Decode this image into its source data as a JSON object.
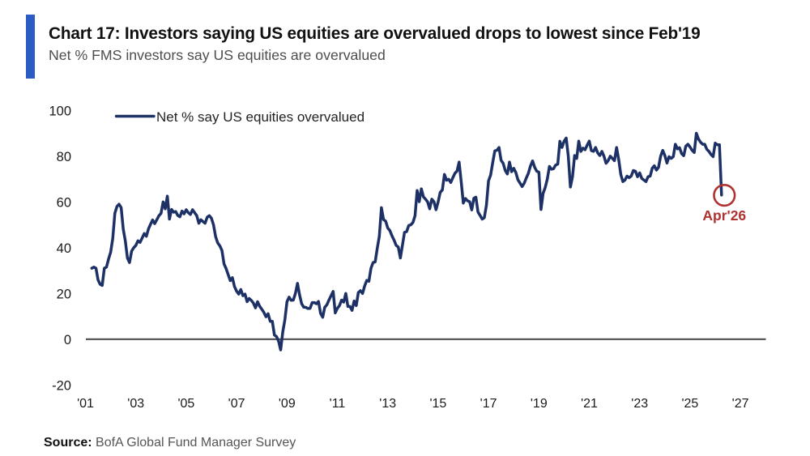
{
  "header": {
    "title": "Chart 17: Investors saying US equities are overvalued drops to lowest since Feb'19",
    "subtitle": "Net % FMS investors say US equities are overvalued"
  },
  "legend": {
    "label": "Net % say US equities overvalued"
  },
  "annotation": {
    "label": "Apr'26"
  },
  "source": {
    "prefix": "Source:",
    "text": "BofA Global Fund Manager Survey"
  },
  "colors": {
    "accent_bar": "#2b5cc4",
    "line": "#1d3166",
    "annotation_red": "#b03232",
    "zero_line": "#4d4d4d",
    "title_text": "#111111",
    "subtitle_text": "#4d4d4d",
    "axis_text": "#1a1a1a",
    "legend_text": "#222222",
    "source_text": "#555555"
  },
  "chart_data": {
    "type": "line",
    "title": "Chart 17: Investors saying US equities are overvalued drops to lowest since Feb'19",
    "subtitle": "Net % FMS investors say US equities are overvalued",
    "ylabel": "Net % say US equities overvalued",
    "xlabel": "",
    "grid": false,
    "legend_position": "top-left",
    "ylim": [
      -20,
      100
    ],
    "y_ticks": [
      100,
      80,
      60,
      40,
      20,
      0,
      -20
    ],
    "x_tick_labels": [
      "'01",
      "'03",
      "'05",
      "'07",
      "'09",
      "'11",
      "'13",
      "'15",
      "'17",
      "'19",
      "'21",
      "'23",
      "'25",
      "'27"
    ],
    "x_tick_years": [
      2001,
      2003,
      2005,
      2007,
      2009,
      2011,
      2013,
      2015,
      2017,
      2019,
      2021,
      2023,
      2025,
      2027
    ],
    "series": [
      {
        "name": "Net % say US equities overvalued",
        "start_month": "Apr'01",
        "end_month": "Apr'26",
        "months": [
          "Apr'01",
          "May'01",
          "Jun'01",
          "Jul'01",
          "Aug'01",
          "Sep'01",
          "Oct'01",
          "Nov'01",
          "Dec'01",
          "Jan'02",
          "Feb'02",
          "Mar'02",
          "Apr'02",
          "May'02",
          "Jun'02",
          "Jul'02",
          "Aug'02",
          "Sep'02",
          "Oct'02",
          "Nov'02",
          "Dec'02",
          "Jan'03",
          "Feb'03",
          "Mar'03",
          "Apr'03",
          "May'03",
          "Jun'03",
          "Jul'03",
          "Aug'03",
          "Sep'03",
          "Oct'03",
          "Nov'03",
          "Dec'03",
          "Jan'04",
          "Feb'04",
          "Mar'04",
          "Apr'04",
          "May'04",
          "Jun'04",
          "Jul'04",
          "Aug'04",
          "Sep'04",
          "Oct'04",
          "Nov'04",
          "Dec'04",
          "Jan'05",
          "Feb'05",
          "Mar'05",
          "Apr'05",
          "May'05",
          "Jun'05",
          "Jul'05",
          "Aug'05",
          "Sep'05",
          "Oct'05",
          "Nov'05",
          "Dec'05",
          "Jan'06",
          "Feb'06",
          "Mar'06",
          "Apr'06",
          "May'06",
          "Jun'06",
          "Jul'06",
          "Aug'06",
          "Sep'06",
          "Oct'06",
          "Nov'06",
          "Dec'06",
          "Jan'07",
          "Feb'07",
          "Mar'07",
          "Apr'07",
          "May'07",
          "Jun'07",
          "Jul'07",
          "Aug'07",
          "Sep'07",
          "Oct'07",
          "Nov'07",
          "Dec'07",
          "Jan'08",
          "Feb'08",
          "Mar'08",
          "Apr'08",
          "May'08",
          "Jun'08",
          "Jul'08",
          "Aug'08",
          "Sep'08",
          "Oct'08",
          "Nov'08",
          "Dec'08",
          "Jan'09",
          "Feb'09",
          "Mar'09",
          "Apr'09",
          "May'09",
          "Jun'09",
          "Jul'09",
          "Aug'09",
          "Sep'09",
          "Oct'09",
          "Nov'09",
          "Dec'09",
          "Jan'10",
          "Feb'10",
          "Mar'10",
          "Apr'10",
          "May'10",
          "Jun'10",
          "Jul'10",
          "Aug'10",
          "Sep'10",
          "Oct'10",
          "Nov'10",
          "Dec'10",
          "Jan'11",
          "Feb'11",
          "Mar'11",
          "Apr'11",
          "May'11",
          "Jun'11",
          "Jul'11",
          "Aug'11",
          "Sep'11",
          "Oct'11",
          "Nov'11",
          "Dec'11",
          "Jan'12",
          "Feb'12",
          "Mar'12",
          "Apr'12",
          "May'12",
          "Jun'12",
          "Jul'12",
          "Aug'12",
          "Sep'12",
          "Oct'12",
          "Nov'12",
          "Dec'12",
          "Jan'13",
          "Feb'13",
          "Mar'13",
          "Apr'13",
          "May'13",
          "Jun'13",
          "Jul'13",
          "Aug'13",
          "Sep'13",
          "Oct'13",
          "Nov'13",
          "Dec'13",
          "Jan'14",
          "Feb'14",
          "Mar'14",
          "Apr'14",
          "May'14",
          "Jun'14",
          "Jul'14",
          "Aug'14",
          "Sep'14",
          "Oct'14",
          "Nov'14",
          "Dec'14",
          "Jan'15",
          "Feb'15",
          "Mar'15",
          "Apr'15",
          "May'15",
          "Jun'15",
          "Jul'15",
          "Aug'15",
          "Sep'15",
          "Oct'15",
          "Nov'15",
          "Dec'15",
          "Jan'16",
          "Feb'16",
          "Mar'16",
          "Apr'16",
          "May'16",
          "Jun'16",
          "Jul'16",
          "Aug'16",
          "Sep'16",
          "Oct'16",
          "Nov'16",
          "Dec'16",
          "Jan'17",
          "Feb'17",
          "Mar'17",
          "Apr'17",
          "May'17",
          "Jun'17",
          "Jul'17",
          "Aug'17",
          "Sep'17",
          "Oct'17",
          "Nov'17",
          "Dec'17",
          "Jan'18",
          "Feb'18",
          "Mar'18",
          "Apr'18",
          "May'18",
          "Jun'18",
          "Jul'18",
          "Aug'18",
          "Sep'18",
          "Oct'18",
          "Nov'18",
          "Dec'18",
          "Jan'19",
          "Feb'19",
          "Mar'19",
          "Apr'19",
          "May'19",
          "Jun'19",
          "Jul'19",
          "Aug'19",
          "Sep'19",
          "Oct'19",
          "Nov'19",
          "Dec'19",
          "Jan'20",
          "Feb'20",
          "Mar'20",
          "Apr'20",
          "May'20",
          "Jun'20",
          "Jul'20",
          "Aug'20",
          "Sep'20",
          "Oct'20",
          "Nov'20",
          "Dec'20",
          "Jan'21",
          "Feb'21",
          "Mar'21",
          "Apr'21",
          "May'21",
          "Jun'21",
          "Jul'21",
          "Aug'21",
          "Sep'21",
          "Oct'21",
          "Nov'21",
          "Dec'21",
          "Jan'22",
          "Feb'22",
          "Mar'22",
          "Apr'22",
          "May'22",
          "Jun'22",
          "Jul'22",
          "Aug'22",
          "Sep'22",
          "Oct'22",
          "Nov'22",
          "Dec'22",
          "Jan'23",
          "Feb'23",
          "Mar'23",
          "Apr'23",
          "May'23",
          "Jun'23",
          "Jul'23",
          "Aug'23",
          "Sep'23",
          "Oct'23",
          "Nov'23",
          "Dec'23",
          "Jan'24",
          "Feb'24",
          "Mar'24",
          "Apr'24",
          "May'24",
          "Jun'24",
          "Jul'24",
          "Aug'24",
          "Sep'24",
          "Oct'24",
          "Nov'24",
          "Dec'24",
          "Jan'25",
          "Feb'25",
          "Mar'25",
          "Apr'25",
          "May'25",
          "Jun'25",
          "Jul'25",
          "Aug'25",
          "Sep'25",
          "Oct'25",
          "Nov'25",
          "Dec'25",
          "Jan'26",
          "Feb'26",
          "Mar'26",
          "Apr'26"
        ],
        "values": [
          31,
          31.5,
          31,
          26,
          24,
          23.5,
          31,
          31.5,
          35,
          38,
          44,
          55,
          58,
          59,
          57.5,
          48,
          43,
          35.5,
          33.5,
          38.5,
          40,
          41,
          43,
          42.3,
          44.2,
          46.2,
          45,
          48.2,
          50.2,
          52.1,
          50.5,
          52.2,
          54,
          55,
          60,
          57,
          62.5,
          52.5,
          56.7,
          55.5,
          55.8,
          54.1,
          53.5,
          56,
          54.8,
          56.6,
          55.3,
          54.5,
          56.6,
          55.3,
          54,
          50.7,
          52.2,
          51.4,
          50.7,
          53.3,
          54,
          52.9,
          50,
          44.8,
          42.1,
          40.8,
          38.8,
          32.9,
          30.9,
          28.2,
          25.6,
          26.9,
          23,
          21,
          19.7,
          21.7,
          19,
          19.7,
          16.4,
          17.8,
          17,
          15.8,
          13.7,
          16.4,
          14.4,
          13.1,
          11.7,
          9.8,
          11.1,
          7.8,
          7.8,
          1.8,
          1.2,
          -0.8,
          -4.7,
          3.2,
          8.5,
          16.4,
          18.4,
          17,
          17.1,
          20,
          24.4,
          19.3,
          15.5,
          14,
          13.9,
          13.4,
          13.5,
          16,
          16,
          15.5,
          16.5,
          11.3,
          9.6,
          13.9,
          15,
          17.1,
          19,
          20.9,
          11.5,
          13.5,
          14.7,
          17.1,
          16.2,
          20,
          14.3,
          14.3,
          12.6,
          16.7,
          14.7,
          20.4,
          21.2,
          20,
          23.3,
          25.7,
          25.3,
          31,
          33.5,
          33.8,
          39.6,
          45,
          57.5,
          52.3,
          51.6,
          48.6,
          47.5,
          45.2,
          43.3,
          41,
          40.3,
          35.5,
          41,
          46.7,
          47,
          49.7,
          50,
          51,
          54,
          65,
          60.1,
          65.7,
          62.2,
          61.2,
          60,
          57,
          61.2,
          60.1,
          56.6,
          60,
          64.2,
          65.2,
          72,
          69.5,
          69.9,
          68.5,
          70.5,
          72.5,
          73.5,
          77.4,
          68.8,
          59.5,
          61.5,
          60.5,
          60.1,
          56.5,
          61.6,
          62.1,
          55.6,
          54.1,
          52.5,
          53.1,
          58.5,
          69.2,
          71.7,
          77.2,
          82.3,
          82.6,
          83.8,
          78.2,
          76.9,
          73.7,
          72.2,
          77.4,
          73.2,
          74.7,
          72.9,
          69.7,
          68.2,
          66.7,
          68.2,
          70.5,
          72.5,
          75.7,
          77.9,
          75.1,
          73.4,
          73,
          56.7,
          63.8,
          66.3,
          70,
          75.5,
          74.3,
          74.5,
          76.1,
          76.5,
          86.5,
          83.8,
          86.5,
          87.9,
          80,
          66.5,
          71,
          80.3,
          79,
          86.6,
          82.1,
          83.5,
          82.8,
          84.8,
          86.6,
          82.4,
          82.1,
          83.8,
          81.4,
          80.3,
          82.1,
          80,
          76.9,
          78,
          80,
          79,
          78,
          83.8,
          78.6,
          72,
          68.9,
          69.6,
          71.3,
          70.6,
          71.3,
          73.7,
          73.4,
          71,
          72.7,
          70.3,
          69.6,
          68.9,
          71,
          71.3,
          74.8,
          75.8,
          73.9,
          75.1,
          80,
          82.5,
          80.3,
          77,
          79.8,
          79,
          79.8,
          85.2,
          83.2,
          83.7,
          81.1,
          80.2,
          84.4,
          85.2,
          84,
          82.5,
          81.6,
          90,
          87.5,
          86.1,
          85.2,
          85.2,
          83,
          82.1,
          80.7,
          79.8,
          85.7,
          85,
          85,
          63
        ]
      }
    ],
    "annotation": {
      "label": "Apr'26",
      "month": "Apr'26",
      "value": 63
    }
  }
}
